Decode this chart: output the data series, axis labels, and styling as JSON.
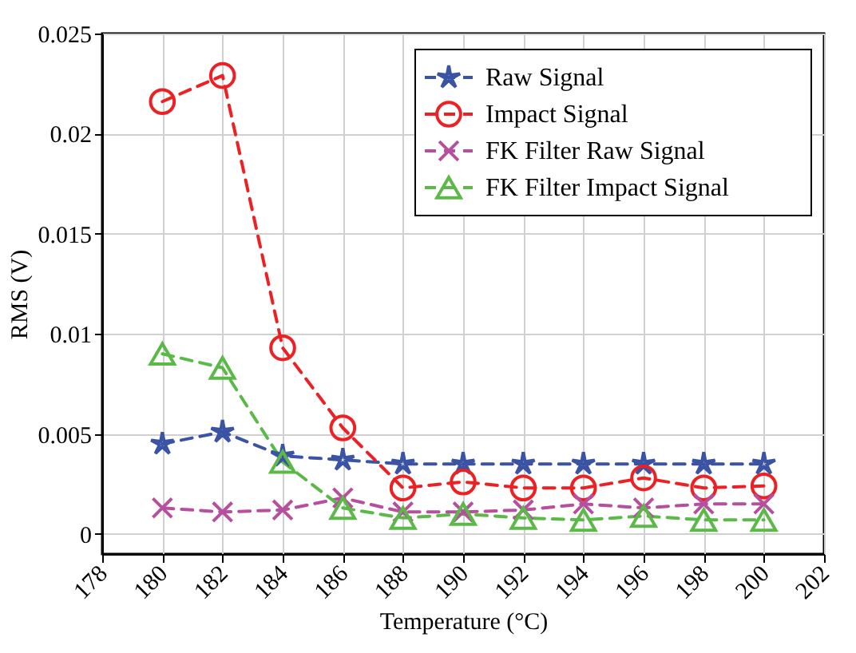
{
  "chart_data": {
    "type": "line",
    "xlabel": "Temperature (°C)",
    "ylabel": "RMS (V)",
    "x": [
      180,
      182,
      184,
      186,
      188,
      190,
      192,
      194,
      196,
      198,
      200
    ],
    "xlim": [
      178,
      202
    ],
    "xticks": [
      178,
      180,
      182,
      184,
      186,
      188,
      190,
      192,
      194,
      196,
      198,
      200,
      202
    ],
    "ylim": [
      -0.001,
      0.025
    ],
    "yticks": [
      0,
      0.005,
      0.01,
      0.015,
      0.02,
      0.025
    ],
    "grid": true,
    "legend": "top right",
    "line_style": "dashed",
    "series": [
      {
        "name": "Raw Signal",
        "color": "#3a53a4",
        "marker": "star",
        "values": [
          0.0045,
          0.0051,
          0.0039,
          0.0037,
          0.0035,
          0.0035,
          0.0035,
          0.0035,
          0.0035,
          0.0035,
          0.0035
        ]
      },
      {
        "name": "Impact Signal",
        "color": "#ed2024",
        "marker": "circle",
        "values": [
          0.0216,
          0.0229,
          0.0093,
          0.0053,
          0.0023,
          0.0026,
          0.0023,
          0.0023,
          0.0028,
          0.0023,
          0.0024
        ]
      },
      {
        "name": "FK Filter Raw Signal",
        "color": "#b64f9e",
        "marker": "cross",
        "values": [
          0.0013,
          0.0011,
          0.0012,
          0.0018,
          0.0011,
          0.0011,
          0.0012,
          0.0015,
          0.0013,
          0.0015,
          0.0015
        ]
      },
      {
        "name": "FK Filter Impact Signal",
        "color": "#5bb947",
        "marker": "triangle",
        "values": [
          0.009,
          0.0083,
          0.0036,
          0.0013,
          0.0008,
          0.001,
          0.0008,
          0.0007,
          0.0009,
          0.0007,
          0.0007
        ]
      }
    ]
  }
}
